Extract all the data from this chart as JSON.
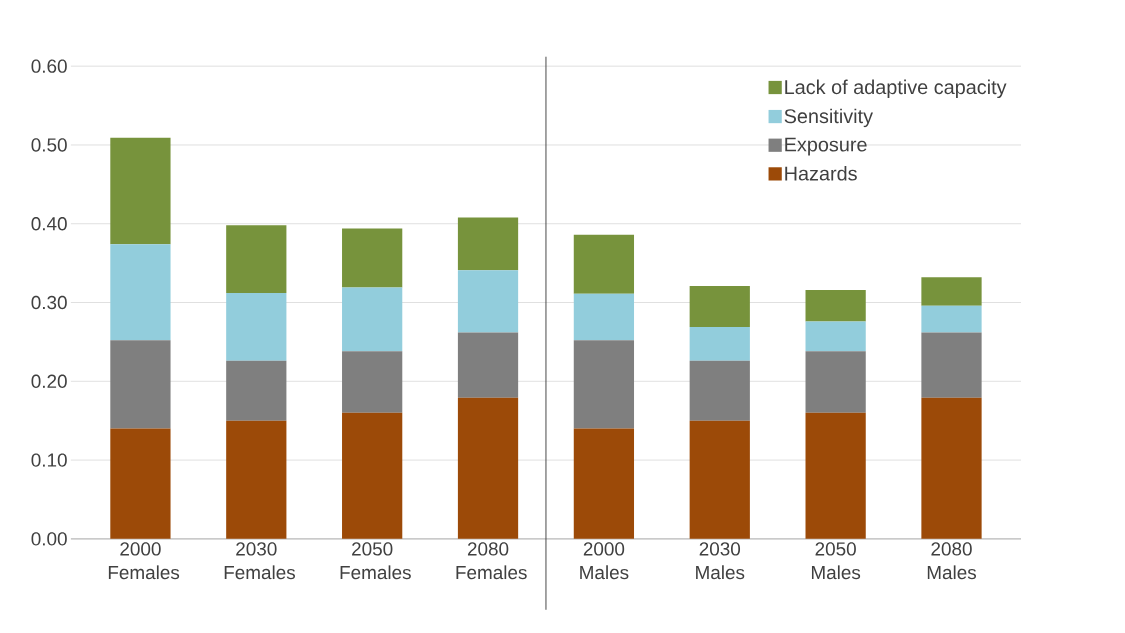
{
  "chart_data": [
    {
      "type": "bar",
      "stacked": true,
      "categories": [
        "2000 Females",
        "2030 Females",
        "2050 Females",
        "2080 Females"
      ],
      "series": [
        {
          "color": "#9c4a08",
          "values": [
            0.14,
            0.15,
            0.16,
            0.179
          ]
        },
        {
          "color": "#7f7f7f",
          "values": [
            0.112,
            0.076,
            0.078,
            0.083
          ]
        },
        {
          "color": "#92cddc",
          "values": [
            0.122,
            0.086,
            0.081,
            0.079
          ]
        },
        {
          "color": "#77933c",
          "values": [
            0.135,
            0.086,
            0.075,
            0.067
          ]
        }
      ],
      "ylim": [
        0,
        0.6
      ],
      "yticks": [
        {
          "value": 0,
          "label": "0.00"
        },
        {
          "value": 0.1,
          "label": "0.10"
        },
        {
          "value": 0.2,
          "label": "0.20"
        },
        {
          "value": 0.3,
          "label": "0.30"
        },
        {
          "value": 0.4,
          "label": "0.40"
        },
        {
          "value": 0.5,
          "label": "0.50"
        },
        {
          "value": 0.6,
          "label": "0.60"
        }
      ],
      "grid": "y"
    },
    {
      "type": "bar",
      "stacked": true,
      "categories": [
        "2000 Males",
        "2030 Males",
        "2050 Males",
        "2080 Males"
      ],
      "series": [
        {
          "name": "Hazards",
          "color": "#9c4a08",
          "values": [
            0.14,
            0.15,
            0.16,
            0.179
          ]
        },
        {
          "name": "Exposure",
          "color": "#7f7f7f",
          "values": [
            0.112,
            0.076,
            0.078,
            0.083
          ]
        },
        {
          "name": "Sensitivity",
          "color": "#92cddc",
          "values": [
            0.059,
            0.043,
            0.038,
            0.034
          ]
        },
        {
          "name": "Lack of adaptive capacity",
          "color": "#77933c",
          "values": [
            0.075,
            0.052,
            0.04,
            0.036
          ]
        }
      ],
      "ylim": [
        0,
        0.6
      ],
      "yticks": [
        0,
        0.1,
        0.2,
        0.3,
        0.4,
        0.5,
        0.6
      ],
      "tick_labels": "x",
      "grid": "y",
      "legend": "top right"
    }
  ]
}
